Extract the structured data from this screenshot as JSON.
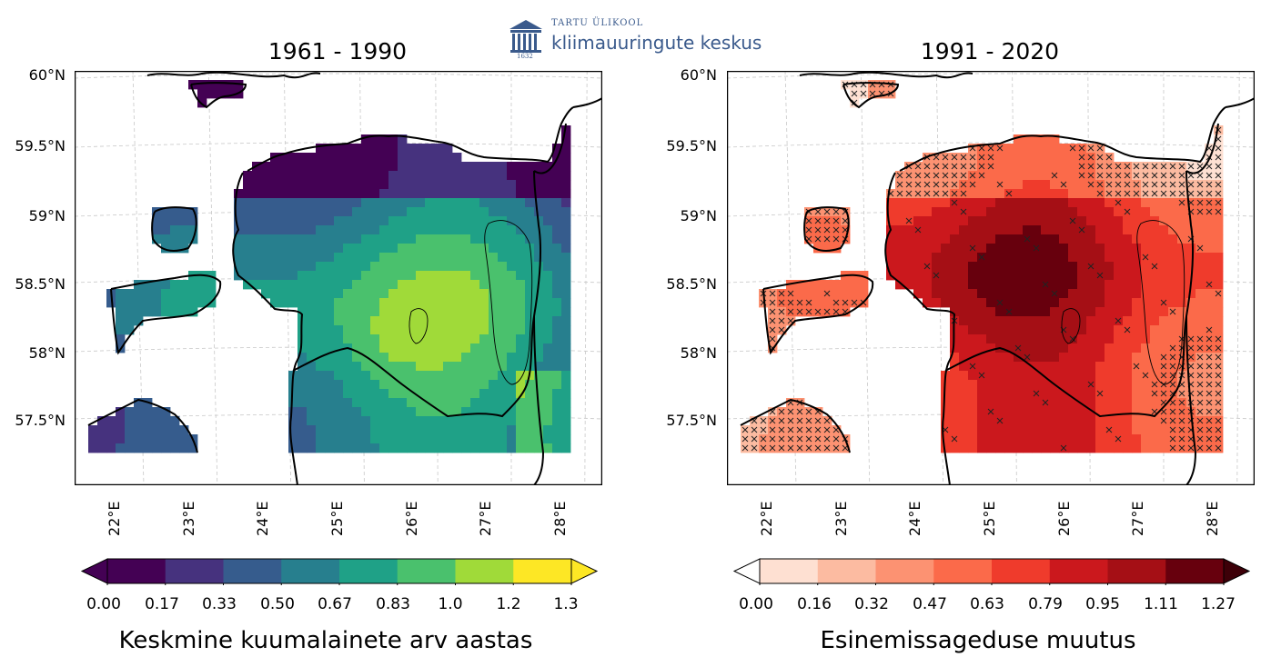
{
  "logo": {
    "institution": "TARTU ÜLIKOOL",
    "department": "kliimauuringute keskus",
    "year": "1632"
  },
  "maps": [
    {
      "title": "1961 - 1990",
      "colormap": "viridis",
      "colorbar_label": "Keskmine kuumalainete arv aastas",
      "colorbar_ticks": [
        "0.00",
        "0.17",
        "0.33",
        "0.50",
        "0.67",
        "0.83",
        "1.0",
        "1.2",
        "1.3"
      ],
      "colors": [
        "#440154",
        "#46327e",
        "#365c8d",
        "#277f8e",
        "#1fa187",
        "#4ac16d",
        "#a0da39",
        "#fde725"
      ],
      "under_color": "#440154",
      "over_color": "#fde725"
    },
    {
      "title": "1991 - 2020",
      "colormap": "Reds",
      "colorbar_label": "Esinemissageduse muutus",
      "colorbar_ticks": [
        "0.00",
        "0.16",
        "0.32",
        "0.47",
        "0.63",
        "0.79",
        "0.95",
        "1.11",
        "1.27"
      ],
      "colors": [
        "#fee0d2",
        "#fcbba1",
        "#fc9272",
        "#fb6a4a",
        "#ef3b2c",
        "#cb181d",
        "#a50f15",
        "#67000d"
      ],
      "under_color": "#ffffff",
      "over_color": "#3d0008"
    }
  ],
  "lat_labels": [
    "60°N",
    "59.5°N",
    "59°N",
    "58.5°N",
    "58°N",
    "57.5°N"
  ],
  "lon_labels": [
    "22°E",
    "23°E",
    "24°E",
    "25°E",
    "26°E",
    "27°E",
    "28°E"
  ]
}
